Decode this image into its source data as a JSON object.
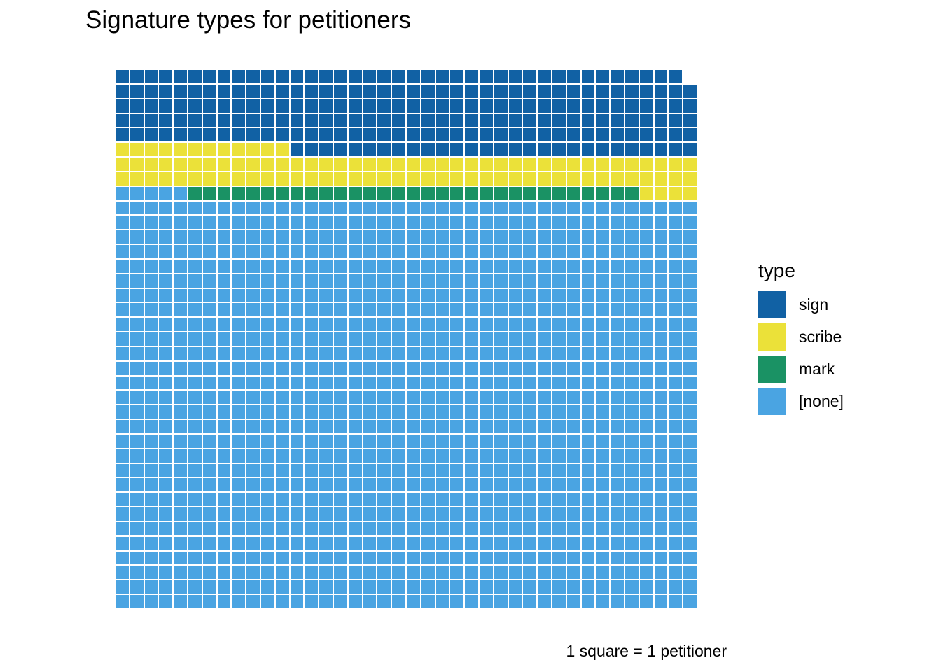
{
  "title": "Signature types for petitioners",
  "caption": "1 square = 1 petitioner",
  "legend": {
    "title": "type",
    "items": [
      {
        "key": "sign",
        "label": "sign",
        "color": "#1161a4"
      },
      {
        "key": "scribe",
        "label": "scribe",
        "color": "#ebe139"
      },
      {
        "key": "mark",
        "label": "mark",
        "color": "#1a9264"
      },
      {
        "key": "none",
        "label": "[none]",
        "color": "#4aa4e2"
      }
    ]
  },
  "chart_data": {
    "type": "waffle",
    "title": "Signature types for petitioners",
    "unit_note": "1 square = 1 petitioner",
    "grid": {
      "columns": 40,
      "rows": 37,
      "fill_order": "bottom-left corner, left-to-right then bottom-to-top",
      "empty_cells_top_right": 1
    },
    "categories": [
      {
        "key": "sign",
        "label": "sign",
        "color": "#1161a4",
        "count": 227
      },
      {
        "key": "scribe",
        "label": "scribe",
        "color": "#ebe139",
        "count": 96
      },
      {
        "key": "mark",
        "label": "mark",
        "color": "#1a9264",
        "count": 31
      },
      {
        "key": "none",
        "label": "[none]",
        "color": "#4aa4e2",
        "count": 1125
      }
    ],
    "total_petitioners": 1479,
    "rows_top_to_bottom": [
      {
        "repeat": 1,
        "runs": [
          [
            "sign",
            39
          ],
          [
            "empty",
            1
          ]
        ]
      },
      {
        "repeat": 4,
        "runs": [
          [
            "sign",
            40
          ]
        ]
      },
      {
        "repeat": 1,
        "runs": [
          [
            "scribe",
            12
          ],
          [
            "sign",
            28
          ]
        ]
      },
      {
        "repeat": 2,
        "runs": [
          [
            "scribe",
            40
          ]
        ]
      },
      {
        "repeat": 1,
        "runs": [
          [
            "none",
            5
          ],
          [
            "mark",
            31
          ],
          [
            "scribe",
            4
          ]
        ]
      },
      {
        "repeat": 28,
        "runs": [
          [
            "none",
            40
          ]
        ]
      }
    ]
  },
  "colors": {
    "background": "#ffffff",
    "cell_border": "#ffffff",
    "text": "#000000"
  }
}
